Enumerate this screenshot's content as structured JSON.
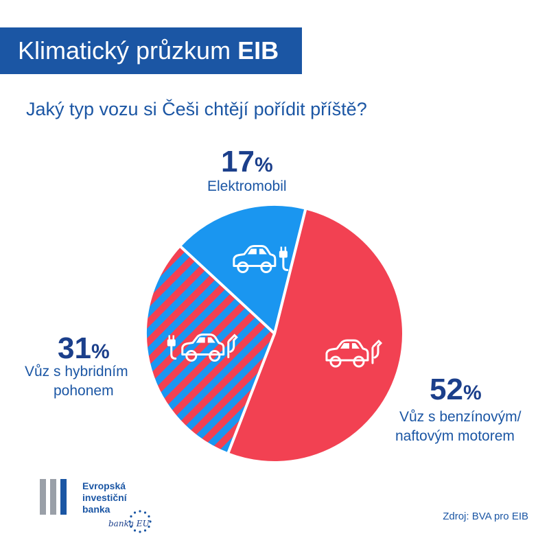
{
  "header": {
    "title_main": "Klimatický průzkum",
    "title_bold": "EIB"
  },
  "question": "Jaký typ vozu si Češi chtějí pořídit příště?",
  "chart_data": {
    "type": "pie",
    "slices": [
      {
        "label": "Vůz s benzínovým/ naftovým motorem",
        "value": 52,
        "display": "52",
        "color": "#f24152",
        "pattern": "solid",
        "icon": "car-fuel-pump-icon"
      },
      {
        "label": "Vůz s hybridním pohonem",
        "value": 31,
        "display": "31",
        "color": "#f24152",
        "pattern": "stripes-blue-red",
        "icon": "car-plug-fuel-icon"
      },
      {
        "label": "Elektromobil",
        "value": 17,
        "display": "17",
        "color": "#1a96f0",
        "pattern": "solid",
        "icon": "car-plug-icon"
      }
    ],
    "percent_symbol": "%"
  },
  "labels": {
    "electric": {
      "pct": "17",
      "text": "Elektromobil"
    },
    "hybrid": {
      "pct": "31",
      "line1": "Vůz s hybridním",
      "line2": "pohonem"
    },
    "fuel": {
      "pct": "52",
      "line1": "Vůz s benzínovým/",
      "line2": "naftovým motorem"
    }
  },
  "footer": {
    "logo_line1": "Evropská",
    "logo_line2": "investiční",
    "logo_line3": "banka",
    "signature": "banka EU",
    "source": "Zdroj: BVA pro EIB"
  },
  "colors": {
    "brand_blue": "#1b56a4",
    "dark_blue": "#1b3f8b",
    "red": "#f24152",
    "light_blue": "#1a96f0"
  }
}
